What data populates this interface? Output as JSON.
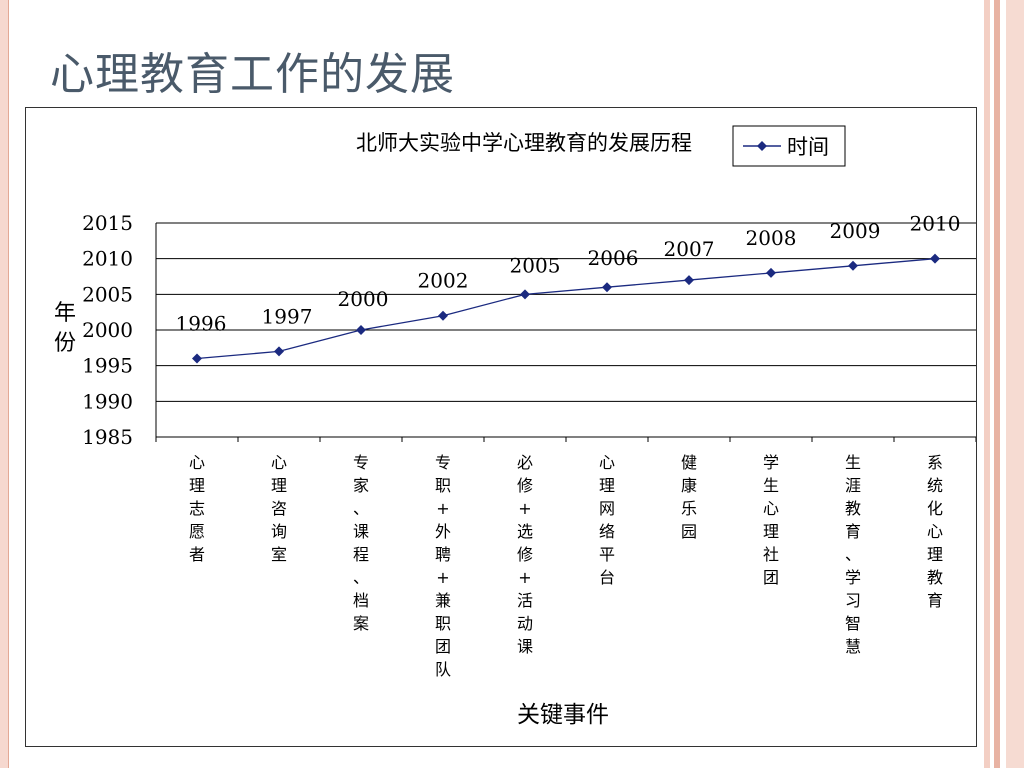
{
  "slide": {
    "title": "心理教育工作的发展"
  },
  "chart_data": {
    "type": "line",
    "title": "北师大实验中学心理教育的发展历程",
    "xlabel": "关键事件",
    "ylabel": "年份",
    "ylim": [
      1985,
      2015
    ],
    "yticks": [
      "2015",
      "2010",
      "2005",
      "2000",
      "1995",
      "1990",
      "1985"
    ],
    "legend": {
      "position": "top-right",
      "label": "时间"
    },
    "grid": true,
    "series_color": "#1b2a80",
    "categories": [
      "心理志愿者",
      "心理咨询室",
      "专家、课程、档案",
      "专职+外聘+兼职团队",
      "必修+选修+活动课",
      "心理网络平台",
      "健康乐园",
      "学生心理社团",
      "生涯教育、学习智慧",
      "系统化心理教育"
    ],
    "series": [
      {
        "name": "时间",
        "values": [
          1996,
          1997,
          2000,
          2002,
          2005,
          2006,
          2007,
          2008,
          2009,
          2010
        ],
        "labels": [
          "1996",
          "1997",
          "2000",
          "2002",
          "2005",
          "2006",
          "2007",
          "2008",
          "2009",
          "2010"
        ]
      }
    ]
  }
}
